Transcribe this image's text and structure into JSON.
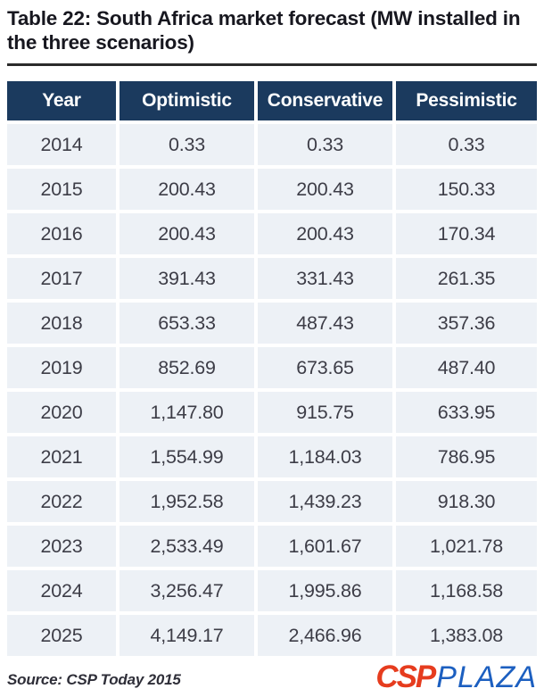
{
  "title": "Table 22: South Africa market forecast (MW installed in the three scenarios)",
  "source": "Source: CSP Today 2015",
  "logo": {
    "csp": "CSP",
    "plaza": "PLAZA"
  },
  "colors": {
    "header_bg": "#1b3a5e",
    "row_bg": "#edf1f6",
    "header_text": "#ffffff",
    "body_text": "#3d3d47",
    "title_text": "#17171f",
    "rule_color": "#2b2b2b",
    "logo_red": "#e63c1e",
    "logo_blue": "#1c5fc0"
  },
  "chart_data": {
    "type": "table",
    "title": "South Africa market forecast (MW installed in the three scenarios)",
    "columns": [
      "Year",
      "Optimistic",
      "Conservative",
      "Pessimistic"
    ],
    "rows": [
      [
        "2014",
        "0.33",
        "0.33",
        "0.33"
      ],
      [
        "2015",
        "200.43",
        "200.43",
        "150.33"
      ],
      [
        "2016",
        "200.43",
        "200.43",
        "170.34"
      ],
      [
        "2017",
        "391.43",
        "331.43",
        "261.35"
      ],
      [
        "2018",
        "653.33",
        "487.43",
        "357.36"
      ],
      [
        "2019",
        "852.69",
        "673.65",
        "487.40"
      ],
      [
        "2020",
        "1,147.80",
        "915.75",
        "633.95"
      ],
      [
        "2021",
        "1,554.99",
        "1,184.03",
        "786.95"
      ],
      [
        "2022",
        "1,952.58",
        "1,439.23",
        "918.30"
      ],
      [
        "2023",
        "2,533.49",
        "1,601.67",
        "1,021.78"
      ],
      [
        "2024",
        "3,256.47",
        "1,995.86",
        "1,168.58"
      ],
      [
        "2025",
        "4,149.17",
        "2,466.96",
        "1,383.08"
      ]
    ]
  }
}
